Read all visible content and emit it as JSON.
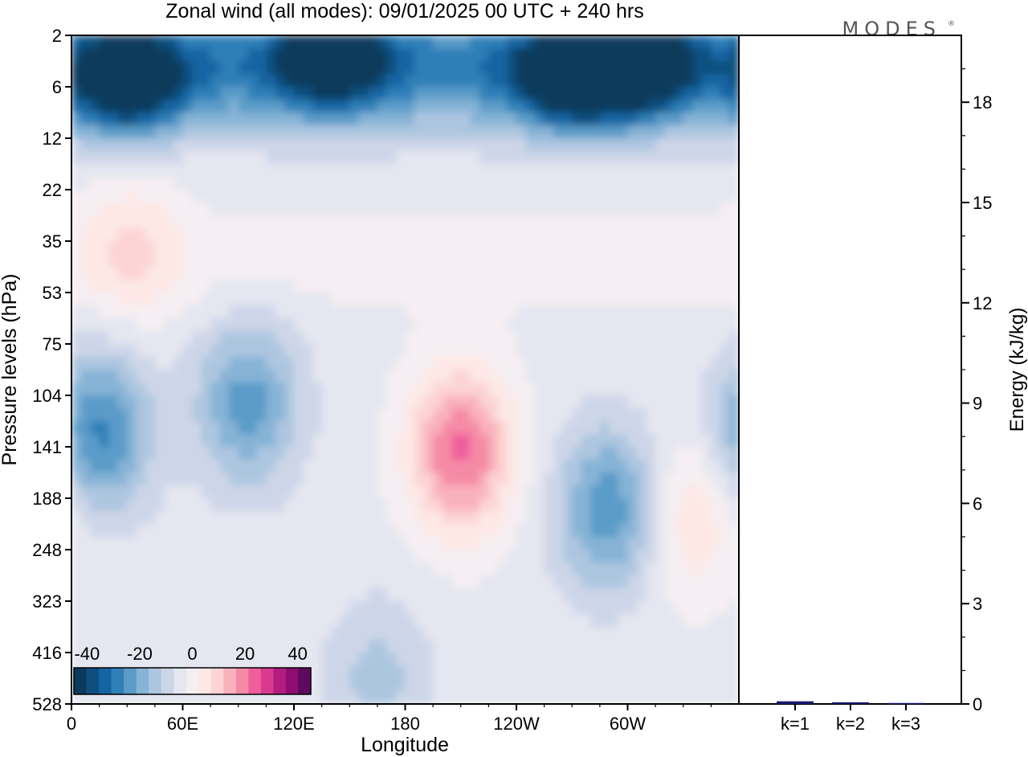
{
  "chart_data": [
    {
      "type": "heatmap",
      "title": "Zonal wind (all modes):  09/01/2025  00 UTC  + 240 hrs",
      "xlabel": "Longitude",
      "ylabel": "Pressure levels (hPa)",
      "x_ticks": [
        "0",
        "60E",
        "120E",
        "180",
        "120W",
        "60W"
      ],
      "y_levels": [
        "2",
        "6",
        "12",
        "22",
        "35",
        "53",
        "75",
        "104",
        "141",
        "188",
        "248",
        "323",
        "416",
        "528"
      ],
      "colorbar": {
        "tick_labels": [
          "-40",
          "-20",
          "0",
          "20",
          "40"
        ],
        "min": -45,
        "max": 45,
        "step": 5,
        "colors": [
          "#0b3a5c",
          "#0e4f7e",
          "#1565a3",
          "#2f7fb8",
          "#5a9bc8",
          "#86b3d6",
          "#adc6e0",
          "#cdd6e8",
          "#e4e6f0",
          "#f5eef2",
          "#fde8e6",
          "#fcd4d4",
          "#f9b2bc",
          "#f58aa6",
          "#ef5f9b",
          "#d93a8e",
          "#b51c80",
          "#8f0c72",
          "#5e0a5f"
        ]
      },
      "features": [
        {
          "lon": 30,
          "level": 5.5,
          "value": -38
        },
        {
          "lon": 140,
          "level": 3.5,
          "value": -35
        },
        {
          "lon": 270,
          "level": 5,
          "value": -40
        },
        {
          "lon": 305,
          "level": 4,
          "value": -38
        },
        {
          "lon": 32,
          "level": 37,
          "value": 10
        },
        {
          "lon": 15,
          "level": 130,
          "value": -24
        },
        {
          "lon": 95,
          "level": 110,
          "value": -20
        },
        {
          "lon": 210,
          "level": 145,
          "value": 28
        },
        {
          "lon": 290,
          "level": 200,
          "value": -22
        },
        {
          "lon": 335,
          "level": 210,
          "value": 12
        },
        {
          "lon": 165,
          "level": 480,
          "value": -10
        }
      ]
    },
    {
      "type": "bar",
      "ylabel": "Energy (kJ/kg)",
      "categories": [
        "k=1",
        "k=2",
        "k=3"
      ],
      "values": [
        0.08,
        0.05,
        0.03
      ],
      "ylim": [
        0,
        20
      ],
      "y_ticks": [
        "0",
        "3",
        "6",
        "9",
        "12",
        "15",
        "18"
      ],
      "bar_color": "#1a1a6e"
    }
  ],
  "logo": "MODES"
}
